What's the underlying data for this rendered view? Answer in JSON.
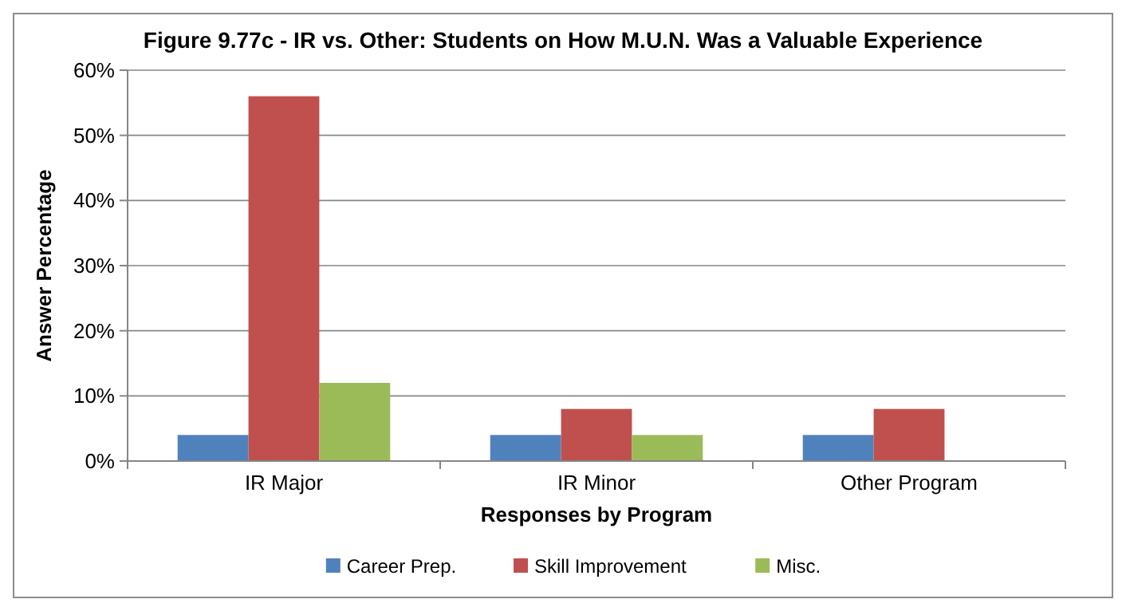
{
  "chart_data": {
    "type": "bar",
    "title": "Figure 9.77c - IR vs. Other: Students on How M.U.N. Was a Valuable Experience",
    "xlabel": "Responses by Program",
    "ylabel": "Answer Percentage",
    "categories": [
      "IR Major",
      "IR Minor",
      "Other Program"
    ],
    "series": [
      {
        "name": "Career Prep.",
        "color": "#4f81bd",
        "values": [
          4,
          4,
          4
        ]
      },
      {
        "name": "Skill Improvement",
        "color": "#c0504d",
        "values": [
          56,
          8,
          8
        ]
      },
      {
        "name": "Misc.",
        "color": "#9bbb59",
        "values": [
          12,
          4,
          0
        ]
      }
    ],
    "ylim": [
      0,
      60
    ],
    "yticks": [
      {
        "value": 0,
        "label": "0%"
      },
      {
        "value": 10,
        "label": "10%"
      },
      {
        "value": 20,
        "label": "20%"
      },
      {
        "value": 30,
        "label": "30%"
      },
      {
        "value": 40,
        "label": "40%"
      },
      {
        "value": 50,
        "label": "50%"
      },
      {
        "value": 60,
        "label": "60%"
      }
    ],
    "grid": "y",
    "legend": "bottom"
  }
}
